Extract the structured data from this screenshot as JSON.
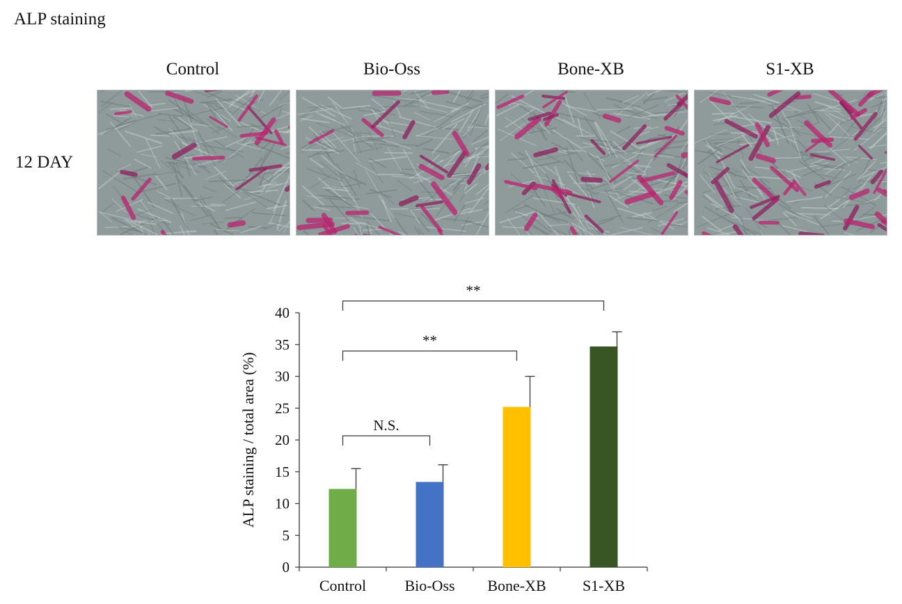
{
  "figure": {
    "title": "ALP staining",
    "row_label": "12 DAY",
    "panels": [
      {
        "label": "Control",
        "stain_level": 0.35
      },
      {
        "label": "Bio-Oss",
        "stain_level": 0.45
      },
      {
        "label": "Bone-XB",
        "stain_level": 0.75
      },
      {
        "label": "S1-XB",
        "stain_level": 0.95
      }
    ],
    "panel_image_type": "ALP-stained cell culture micrograph (pink/magenta stained regions on grey fibrous background)"
  },
  "chart_data": {
    "type": "bar",
    "categories": [
      "Control",
      "Bio-Oss",
      "Bone-XB",
      "S1-XB"
    ],
    "values": [
      12.3,
      13.4,
      25.2,
      34.7
    ],
    "errors": [
      3.2,
      2.7,
      4.8,
      2.3
    ],
    "colors": [
      "#70ad47",
      "#4472c4",
      "#ffc000",
      "#375623"
    ],
    "title": "",
    "xlabel": "",
    "ylabel": "ALP staining / total area (%)",
    "ylim": [
      0,
      40
    ],
    "yticks": [
      0,
      5,
      10,
      15,
      20,
      25,
      30,
      35,
      40
    ],
    "grid": false,
    "legend": "none",
    "significance": [
      {
        "from": "Control",
        "to": "Bio-Oss",
        "label": "N.S."
      },
      {
        "from": "Control",
        "to": "Bone-XB",
        "label": "**"
      },
      {
        "from": "Control",
        "to": "S1-XB",
        "label": "**"
      }
    ]
  }
}
